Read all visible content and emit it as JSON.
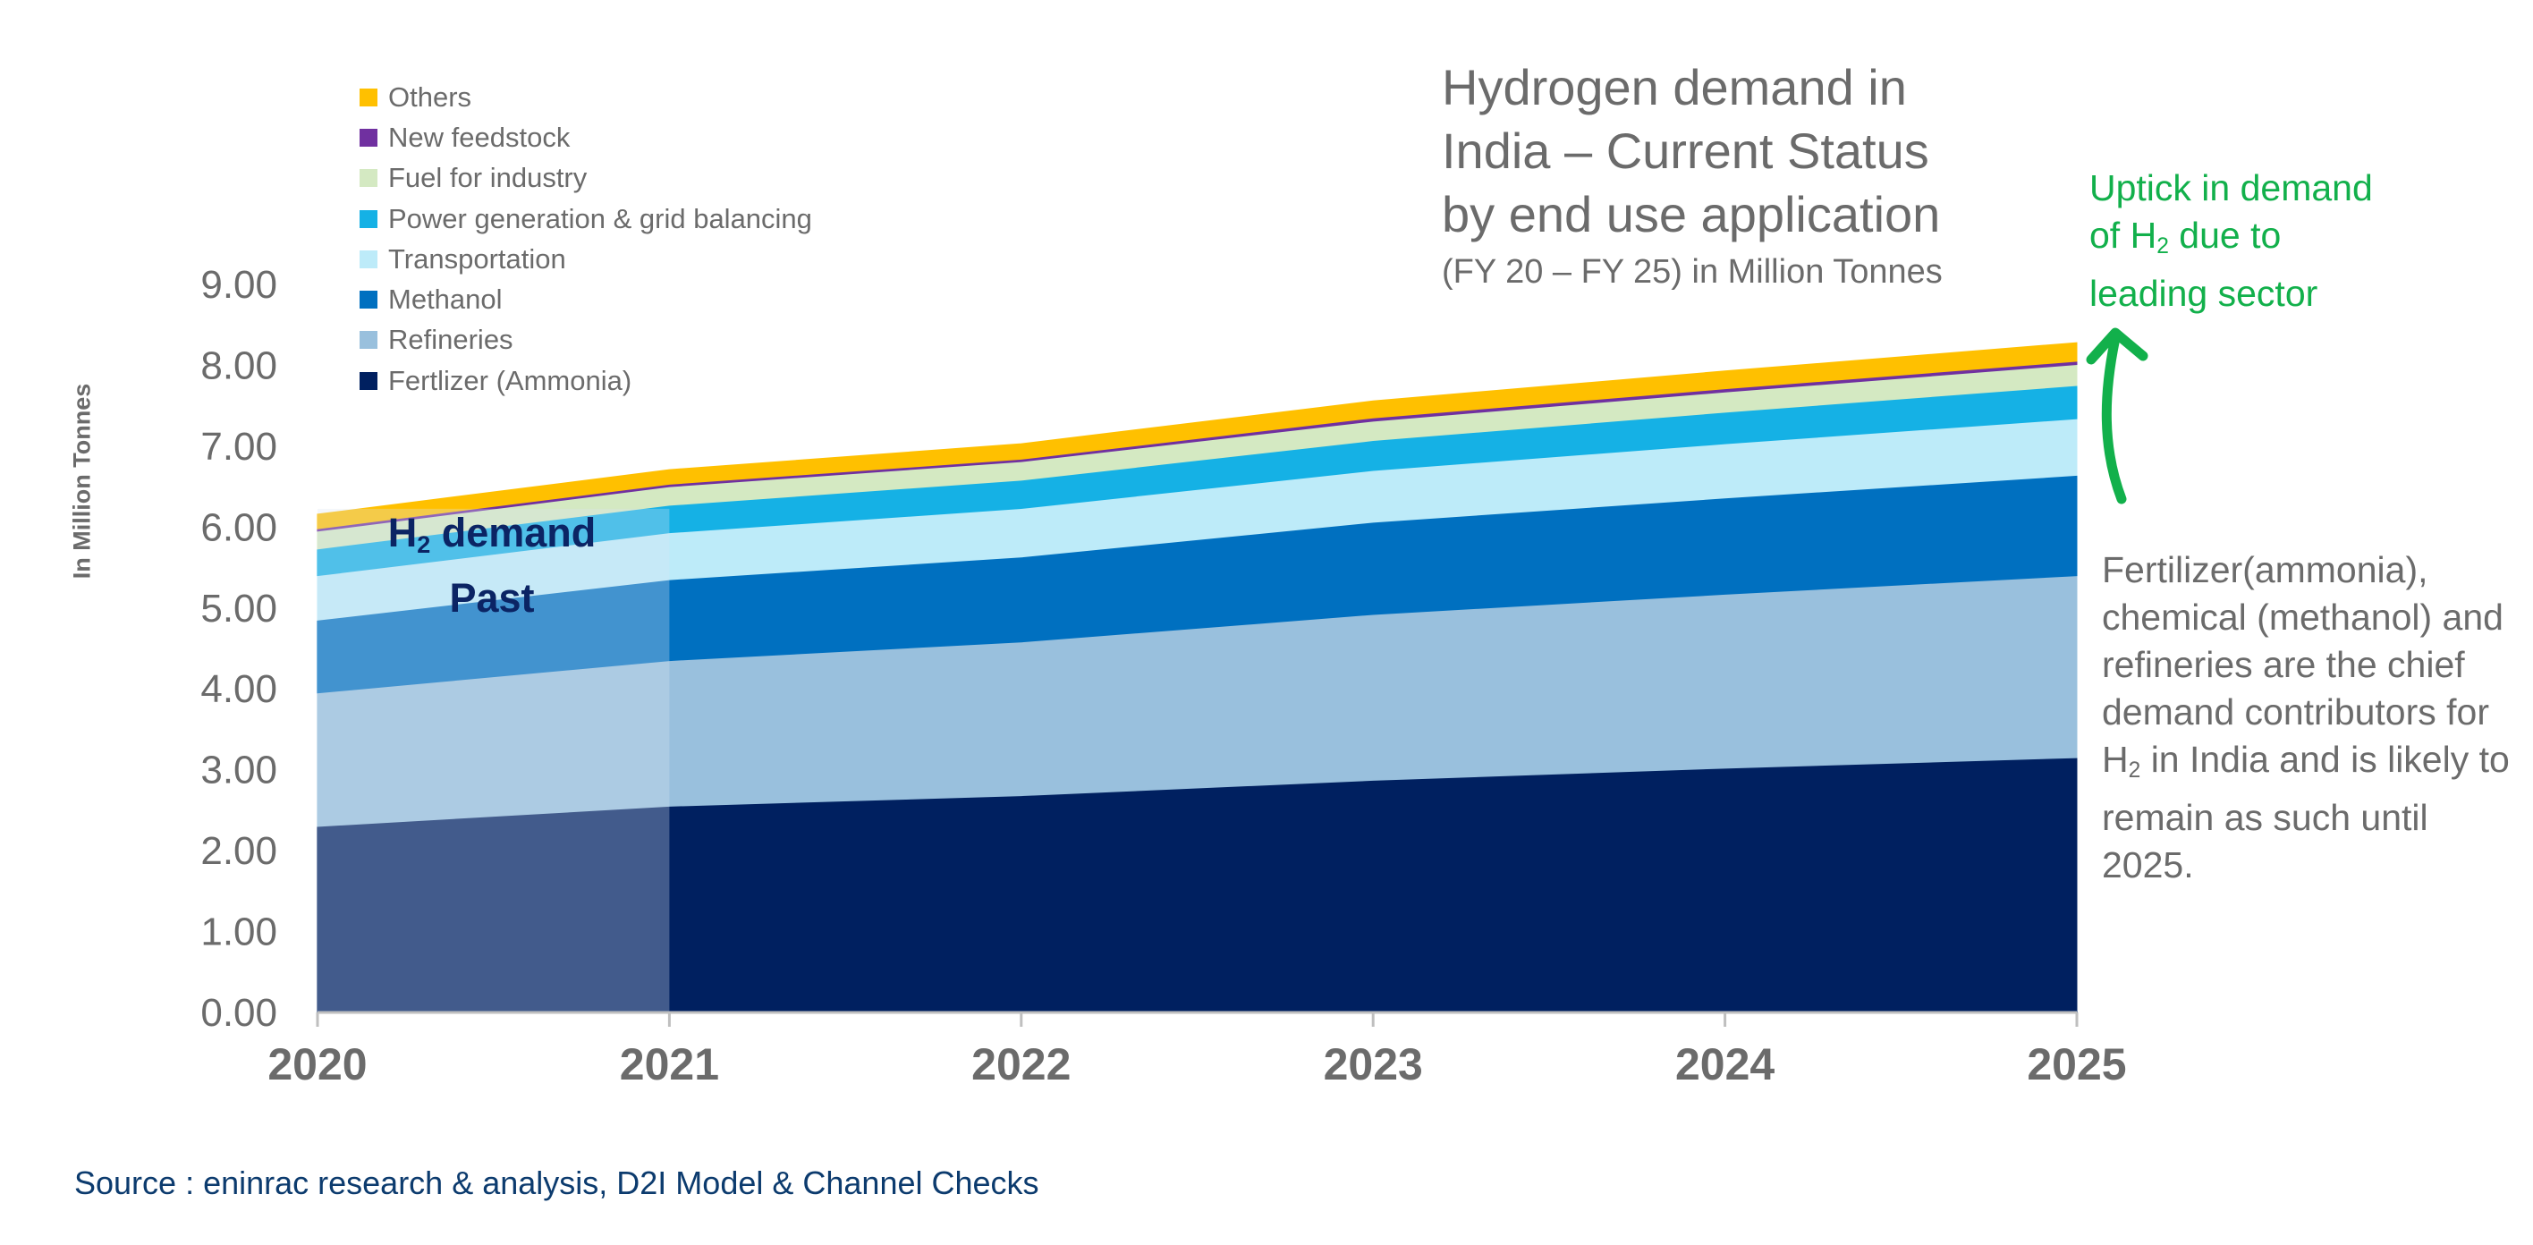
{
  "chart_data": {
    "type": "area",
    "stacked": true,
    "title": "Hydrogen demand in India – Current Status by end use application",
    "subtitle": "(FY 20 – FY 25) in Million Tonnes",
    "ylabel": "In Million Tonnes",
    "xlabel": "",
    "x": [
      "2020",
      "2021",
      "2022",
      "2023",
      "2024",
      "2025"
    ],
    "ylim": [
      0,
      9
    ],
    "yticks": [
      "0.00",
      "1.00",
      "2.00",
      "3.00",
      "4.00",
      "5.00",
      "6.00",
      "7.00",
      "8.00",
      "9.00"
    ],
    "grid": false,
    "legend_position": "top-left",
    "series": [
      {
        "name": "Fertlizer (Ammonia)",
        "color": "#002060",
        "values": [
          2.3,
          2.55,
          2.68,
          2.87,
          3.02,
          3.15
        ]
      },
      {
        "name": "Refineries",
        "color": "#99c0dd",
        "values": [
          1.65,
          1.8,
          1.9,
          2.05,
          2.15,
          2.25
        ]
      },
      {
        "name": "Methanol",
        "color": "#0070c0",
        "values": [
          0.9,
          1.0,
          1.05,
          1.14,
          1.19,
          1.24
        ]
      },
      {
        "name": "Transportation",
        "color": "#bdebf9",
        "values": [
          0.55,
          0.58,
          0.6,
          0.64,
          0.67,
          0.7
        ]
      },
      {
        "name": "Power generation & grid balancing",
        "color": "#15b1e5",
        "values": [
          0.33,
          0.34,
          0.35,
          0.37,
          0.39,
          0.41
        ]
      },
      {
        "name": "Fuel for industry",
        "color": "#d4e9c2",
        "values": [
          0.22,
          0.23,
          0.23,
          0.24,
          0.25,
          0.26
        ]
      },
      {
        "name": "New feedstock",
        "color": "#7030a0",
        "values": [
          0.03,
          0.03,
          0.03,
          0.04,
          0.04,
          0.04
        ]
      },
      {
        "name": "Others",
        "color": "#ffc000",
        "values": [
          0.18,
          0.18,
          0.19,
          0.21,
          0.22,
          0.23
        ]
      }
    ],
    "past_overlay": {
      "label_main": "H",
      "label_sub": "2",
      "label_rest": " demand Past",
      "from": "2020",
      "to": "2021"
    }
  },
  "title_lines": [
    "Hydrogen demand in",
    "India – Current Status",
    "by end use application"
  ],
  "subtitle": "(FY 20 – FY 25) in Million Tonnes",
  "uptick": {
    "line1": "Uptick in demand",
    "line2_pre": "of H",
    "line2_sub": "2",
    "line2_post": " due to",
    "line3": "leading sector"
  },
  "note": {
    "pre": "Fertilizer(ammonia), chemical (methanol) and refineries are the chief demand contributors for H",
    "sub": "2",
    "post": " in India and is likely to remain as such until 2025."
  },
  "past_label": {
    "main": "H",
    "sub": "2",
    "rest1": " demand",
    "rest2": "Past"
  },
  "source": "Source : eninrac research & analysis, D2I Model & Channel Checks",
  "colors": {
    "accent_green": "#12b04b",
    "overlay": "#dbe6f2"
  }
}
